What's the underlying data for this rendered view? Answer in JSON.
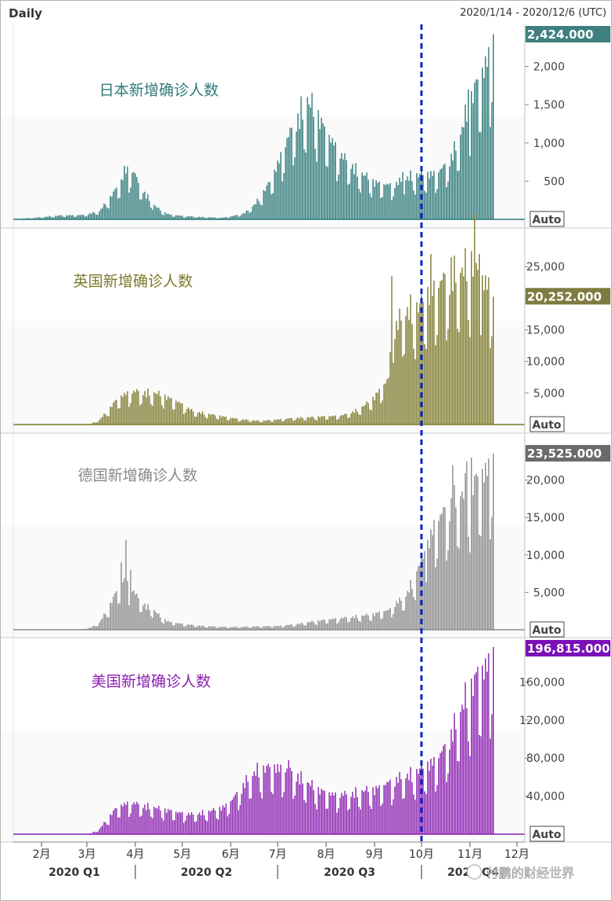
{
  "header": {
    "title": "Daily",
    "date_range": "2020/1/14 - 2020/12/6 (UTC)"
  },
  "watermark": "付鹏的财经世界",
  "x_axis": {
    "month_labels": [
      "2月",
      "3月",
      "4月",
      "5月",
      "6月",
      "7月",
      "8月",
      "9月",
      "10月",
      "11月",
      "12月"
    ],
    "quarter_labels": [
      "2020 Q1",
      "2020 Q2",
      "2020 Q3",
      "2020 Q4"
    ],
    "marker_date": "2020-10-01"
  },
  "chart_data": [
    {
      "type": "bar",
      "name": "japan",
      "label": "日本新增确诊人数",
      "color": "#2f7a7a",
      "label_color": "#2f7a7a",
      "last_value_label": "2,424.000",
      "badge_color": "#3f7f7f",
      "scale_button": "Auto",
      "y_ticks": [
        {
          "v": 500,
          "t": "500"
        },
        {
          "v": 1000,
          "t": "1,000"
        },
        {
          "v": 1500,
          "t": "1,500"
        },
        {
          "v": 2000,
          "t": "2,000"
        }
      ],
      "ylim": [
        0,
        2500
      ],
      "keypoints": [
        [
          0,
          5
        ],
        [
          14,
          20
        ],
        [
          30,
          50
        ],
        [
          45,
          55
        ],
        [
          55,
          100
        ],
        [
          62,
          280
        ],
        [
          68,
          450
        ],
        [
          72,
          600
        ],
        [
          76,
          620
        ],
        [
          80,
          450
        ],
        [
          85,
          300
        ],
        [
          90,
          180
        ],
        [
          95,
          100
        ],
        [
          100,
          60
        ],
        [
          110,
          40
        ],
        [
          120,
          30
        ],
        [
          133,
          20
        ],
        [
          140,
          40
        ],
        [
          148,
          80
        ],
        [
          155,
          200
        ],
        [
          160,
          350
        ],
        [
          165,
          500
        ],
        [
          170,
          750
        ],
        [
          175,
          1000
        ],
        [
          180,
          1200
        ],
        [
          185,
          1350
        ],
        [
          190,
          1450
        ],
        [
          195,
          1300
        ],
        [
          200,
          1100
        ],
        [
          205,
          950
        ],
        [
          210,
          800
        ],
        [
          215,
          700
        ],
        [
          220,
          600
        ],
        [
          225,
          550
        ],
        [
          230,
          480
        ],
        [
          235,
          450
        ],
        [
          240,
          430
        ],
        [
          245,
          450
        ],
        [
          250,
          500
        ],
        [
          255,
          550
        ],
        [
          260,
          560
        ],
        [
          265,
          570
        ],
        [
          270,
          580
        ],
        [
          275,
          650
        ],
        [
          280,
          780
        ],
        [
          285,
          1000
        ],
        [
          290,
          1350
        ],
        [
          295,
          1650
        ],
        [
          300,
          1850
        ],
        [
          305,
          2100
        ],
        [
          307,
          2424
        ]
      ],
      "peaks": [
        [
          71,
          700
        ],
        [
          73,
          690
        ],
        [
          78,
          600
        ],
        [
          184,
          1610
        ],
        [
          188,
          1600
        ],
        [
          249,
          620
        ],
        [
          291,
          1700
        ]
      ]
    },
    {
      "type": "bar",
      "name": "uk",
      "label": "英国新增确诊人数",
      "color": "#7d7a2c",
      "label_color": "#7d7a2c",
      "last_value_label": "20,252.000",
      "badge_color": "#7f7a3f",
      "scale_button": "Auto",
      "y_ticks": [
        {
          "v": 5000,
          "t": "5,000"
        },
        {
          "v": 10000,
          "t": "10,000"
        },
        {
          "v": 15000,
          "t": "15,000"
        },
        {
          "v": 20000,
          "t": "20,000"
        },
        {
          "v": 25000,
          "t": "25,000"
        }
      ],
      "ylim": [
        0,
        30000
      ],
      "keypoints": [
        [
          0,
          0
        ],
        [
          45,
          0
        ],
        [
          50,
          150
        ],
        [
          55,
          700
        ],
        [
          60,
          2000
        ],
        [
          65,
          3500
        ],
        [
          70,
          4500
        ],
        [
          75,
          5000
        ],
        [
          80,
          5000
        ],
        [
          85,
          4800
        ],
        [
          90,
          4800
        ],
        [
          95,
          4500
        ],
        [
          100,
          4000
        ],
        [
          105,
          3500
        ],
        [
          110,
          2800
        ],
        [
          115,
          2000
        ],
        [
          120,
          1800
        ],
        [
          125,
          1600
        ],
        [
          130,
          1400
        ],
        [
          135,
          1200
        ],
        [
          140,
          1000
        ],
        [
          145,
          800
        ],
        [
          150,
          700
        ],
        [
          155,
          600
        ],
        [
          160,
          600
        ],
        [
          165,
          700
        ],
        [
          170,
          800
        ],
        [
          175,
          900
        ],
        [
          180,
          1000
        ],
        [
          185,
          1050
        ],
        [
          190,
          1100
        ],
        [
          195,
          1200
        ],
        [
          200,
          1250
        ],
        [
          205,
          1300
        ],
        [
          210,
          1400
        ],
        [
          215,
          1700
        ],
        [
          220,
          2200
        ],
        [
          225,
          3000
        ],
        [
          230,
          4000
        ],
        [
          235,
          5500
        ],
        [
          240,
          7000
        ],
        [
          242,
          14000
        ],
        [
          245,
          15000
        ],
        [
          250,
          17000
        ],
        [
          255,
          17500
        ],
        [
          260,
          18000
        ],
        [
          265,
          20000
        ],
        [
          270,
          21000
        ],
        [
          275,
          22000
        ],
        [
          280,
          22500
        ],
        [
          285,
          23000
        ],
        [
          290,
          24000
        ],
        [
          293,
          25000
        ],
        [
          295,
          24000
        ],
        [
          300,
          22000
        ],
        [
          305,
          21000
        ],
        [
          307,
          20252
        ]
      ],
      "peaks": [
        [
          242,
          23500
        ],
        [
          267,
          27000
        ],
        [
          280,
          26500
        ],
        [
          295,
          33500
        ],
        [
          298,
          27000
        ]
      ]
    },
    {
      "type": "bar",
      "name": "germany",
      "label": "德国新增确诊人数",
      "color": "#8a8a8a",
      "label_color": "#8a8a8a",
      "last_value_label": "23,525.000",
      "badge_color": "#6b6b6b",
      "scale_button": "Auto",
      "y_ticks": [
        {
          "v": 5000,
          "t": "5,000"
        },
        {
          "v": 10000,
          "t": "10,000"
        },
        {
          "v": 15000,
          "t": "15,000"
        },
        {
          "v": 20000,
          "t": "20,000"
        }
      ],
      "ylim": [
        0,
        25000
      ],
      "keypoints": [
        [
          0,
          0
        ],
        [
          40,
          0
        ],
        [
          45,
          100
        ],
        [
          50,
          300
        ],
        [
          55,
          900
        ],
        [
          60,
          2500
        ],
        [
          65,
          4500
        ],
        [
          70,
          6500
        ],
        [
          75,
          5500
        ],
        [
          80,
          4000
        ],
        [
          85,
          3000
        ],
        [
          90,
          2500
        ],
        [
          95,
          1500
        ],
        [
          100,
          1000
        ],
        [
          110,
          700
        ],
        [
          120,
          500
        ],
        [
          130,
          400
        ],
        [
          140,
          350
        ],
        [
          150,
          400
        ],
        [
          160,
          450
        ],
        [
          170,
          500
        ],
        [
          180,
          700
        ],
        [
          190,
          1000
        ],
        [
          200,
          1300
        ],
        [
          210,
          1500
        ],
        [
          220,
          1700
        ],
        [
          230,
          2000
        ],
        [
          235,
          2300
        ],
        [
          240,
          2500
        ],
        [
          245,
          3500
        ],
        [
          250,
          4000
        ],
        [
          255,
          6000
        ],
        [
          260,
          8000
        ],
        [
          265,
          11000
        ],
        [
          270,
          14000
        ],
        [
          275,
          15000
        ],
        [
          280,
          16000
        ],
        [
          285,
          17000
        ],
        [
          290,
          18000
        ],
        [
          295,
          19000
        ],
        [
          300,
          20000
        ],
        [
          305,
          21000
        ],
        [
          307,
          23525
        ]
      ],
      "peaks": [
        [
          69,
          9000
        ],
        [
          72,
          12000
        ],
        [
          75,
          8000
        ],
        [
          259,
          8500
        ],
        [
          263,
          10500
        ],
        [
          281,
          22000
        ],
        [
          290,
          22500
        ],
        [
          293,
          23000
        ]
      ]
    },
    {
      "type": "bar",
      "name": "usa",
      "label": "美国新增确诊人数",
      "color": "#8a1fb0",
      "label_color": "#8a1fb0",
      "last_value_label": "196,815.000",
      "badge_color": "#7b10b8",
      "scale_button": "Auto",
      "y_ticks": [
        {
          "v": 40000,
          "t": "40,000"
        },
        {
          "v": 80000,
          "t": "80,000"
        },
        {
          "v": 120000,
          "t": "120,000"
        },
        {
          "v": 160000,
          "t": "160,000"
        }
      ],
      "ylim": [
        0,
        200000
      ],
      "keypoints": [
        [
          0,
          0
        ],
        [
          45,
          0
        ],
        [
          50,
          1000
        ],
        [
          55,
          5000
        ],
        [
          60,
          15000
        ],
        [
          65,
          25000
        ],
        [
          70,
          30000
        ],
        [
          75,
          32000
        ],
        [
          80,
          30000
        ],
        [
          85,
          28000
        ],
        [
          90,
          27000
        ],
        [
          95,
          25000
        ],
        [
          100,
          24000
        ],
        [
          105,
          22000
        ],
        [
          110,
          21000
        ],
        [
          115,
          20000
        ],
        [
          120,
          21000
        ],
        [
          125,
          23000
        ],
        [
          130,
          25000
        ],
        [
          135,
          28000
        ],
        [
          140,
          35000
        ],
        [
          145,
          45000
        ],
        [
          150,
          55000
        ],
        [
          155,
          63000
        ],
        [
          160,
          66000
        ],
        [
          165,
          68000
        ],
        [
          170,
          67000
        ],
        [
          175,
          65000
        ],
        [
          180,
          60000
        ],
        [
          185,
          55000
        ],
        [
          190,
          50000
        ],
        [
          195,
          45000
        ],
        [
          200,
          42000
        ],
        [
          205,
          40000
        ],
        [
          210,
          40000
        ],
        [
          215,
          40000
        ],
        [
          220,
          42000
        ],
        [
          225,
          44000
        ],
        [
          230,
          45000
        ],
        [
          235,
          48000
        ],
        [
          240,
          52000
        ],
        [
          245,
          55000
        ],
        [
          250,
          58000
        ],
        [
          255,
          60000
        ],
        [
          260,
          65000
        ],
        [
          265,
          70000
        ],
        [
          270,
          75000
        ],
        [
          275,
          85000
        ],
        [
          280,
          100000
        ],
        [
          285,
          120000
        ],
        [
          290,
          140000
        ],
        [
          295,
          155000
        ],
        [
          300,
          165000
        ],
        [
          305,
          175000
        ],
        [
          307,
          196815
        ]
      ],
      "peaks": [
        [
          176,
          78000
        ],
        [
          297,
          176000
        ]
      ]
    }
  ]
}
